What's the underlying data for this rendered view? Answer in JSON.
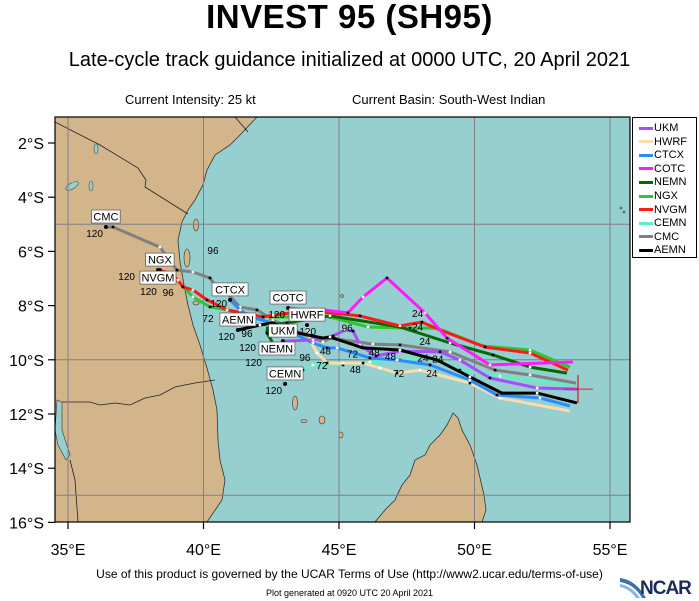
{
  "header": {
    "title": "INVEST 95 (SH95)",
    "subtitle": "Late-cycle track guidance initialized at 0000 UTC, 20 April 2021",
    "intensity": "Current Intensity: 25 kt",
    "basin": "Current Basin: South-West Indian"
  },
  "footer": {
    "terms": "Use of this product is governed by the UCAR Terms of Use (http://www2.ucar.edu/terms-of-use)",
    "generated": "Plot generated at 0920 UTC   20 April 2021",
    "logo": "NCAR"
  },
  "colors": {
    "ocean": "#96cfcf",
    "land": "#d3b58c",
    "grid": "#808080"
  },
  "chart_data": {
    "type": "line",
    "map_extent": {
      "lon": [
        34.5,
        55.7
      ],
      "lat_south": [
        1.0,
        16.0
      ]
    },
    "x_ticks": [
      "35°E",
      "40°E",
      "45°E",
      "50°E",
      "55°E"
    ],
    "x_tick_values": [
      35,
      40,
      45,
      50,
      55
    ],
    "y_ticks": [
      "2°S",
      "4°S",
      "6°S",
      "8°S",
      "10°S",
      "12°S",
      "14°S",
      "16°S"
    ],
    "y_tick_values": [
      2,
      4,
      6,
      8,
      10,
      12,
      14,
      16
    ],
    "grid_interval_deg": 5,
    "legend_placement": "right",
    "initial_position": {
      "lon": 53.82,
      "lat_south": 11.08
    },
    "tracks": [
      {
        "name": "UKM",
        "color": "#a64dff",
        "points": [
          [
            53.82,
            11.08
          ],
          [
            52.31,
            11.04
          ],
          [
            50.57,
            10.67
          ],
          [
            49.46,
            10.01
          ],
          [
            48.73,
            9.71
          ],
          [
            47.25,
            9.68
          ],
          [
            46.37,
            9.86
          ],
          [
            45.77,
            9.45
          ],
          [
            45.52,
            8.94
          ],
          [
            45.22,
            8.9
          ],
          [
            44.78,
            9.12
          ],
          [
            44.04,
            9.27
          ],
          [
            42.93,
            9.31
          ]
        ]
      },
      {
        "name": "HWRF",
        "color": "#f7dcae",
        "points": [
          [
            53.52,
            11.89
          ],
          [
            50.94,
            11.41
          ],
          [
            49.83,
            10.86
          ],
          [
            47.99,
            10.38
          ],
          [
            47.14,
            10.49
          ],
          [
            46.51,
            10.3
          ],
          [
            45.89,
            10.12
          ],
          [
            45.15,
            10.12
          ],
          [
            44.56,
            10.12
          ],
          [
            44.19,
            9.75
          ],
          [
            43.93,
            9.27
          ],
          [
            43.82,
            8.72
          ]
        ]
      },
      {
        "name": "CTCX",
        "color": "#2b8cff",
        "points": [
          [
            53.52,
            11.7
          ],
          [
            52.42,
            11.41
          ],
          [
            50.83,
            11.3
          ],
          [
            49.83,
            10.75
          ],
          [
            48.36,
            10.19
          ],
          [
            47.14,
            10.01
          ],
          [
            46.14,
            9.93
          ],
          [
            44.93,
            9.56
          ],
          [
            44.56,
            9.56
          ],
          [
            44.04,
            9.38
          ],
          [
            43.3,
            9.01
          ],
          [
            42.56,
            8.64
          ],
          [
            41.72,
            8.42
          ],
          [
            41.35,
            8.16
          ],
          [
            40.98,
            7.79
          ]
        ]
      },
      {
        "name": "COTC",
        "color": "#ff1aff",
        "points": [
          [
            53.63,
            10.08
          ],
          [
            50.57,
            10.19
          ],
          [
            48.99,
            9.2
          ],
          [
            48.17,
            8.27
          ],
          [
            46.77,
            6.98
          ],
          [
            45.89,
            7.68
          ],
          [
            45.33,
            8.27
          ],
          [
            44.41,
            8.16
          ],
          [
            43.82,
            8.16
          ],
          [
            43.12,
            8.09
          ]
        ]
      },
      {
        "name": "NEMN",
        "color": "#006a00",
        "points": [
          [
            53.41,
            10.49
          ],
          [
            52.05,
            10.27
          ],
          [
            50.68,
            9.82
          ],
          [
            49.1,
            9.38
          ],
          [
            47.25,
            8.79
          ],
          [
            44.67,
            8.38
          ],
          [
            43.08,
            8.64
          ],
          [
            42.38,
            8.72
          ],
          [
            42.34,
            9.01
          ],
          [
            42.56,
            9.38
          ],
          [
            42.71,
            9.75
          ]
        ]
      },
      {
        "name": "NGX",
        "color": "#33c233",
        "points": [
          [
            53.52,
            10.27
          ],
          [
            52.05,
            9.64
          ],
          [
            50.31,
            9.49
          ],
          [
            48.62,
            8.83
          ],
          [
            47.62,
            8.83
          ],
          [
            46.07,
            8.79
          ],
          [
            44.67,
            8.42
          ],
          [
            44.3,
            8.35
          ],
          [
            43.3,
            8.42
          ],
          [
            42.34,
            8.42
          ],
          [
            41.61,
            8.35
          ],
          [
            40.87,
            8.16
          ],
          [
            40.24,
            8.05
          ],
          [
            39.61,
            7.68
          ],
          [
            39.02,
            7.06
          ],
          [
            38.39,
            6.69
          ]
        ]
      },
      {
        "name": "NVGM",
        "color": "#ff1a1a",
        "points": [
          [
            53.45,
            10.38
          ],
          [
            52.05,
            9.75
          ],
          [
            50.39,
            9.53
          ],
          [
            48.73,
            8.9
          ],
          [
            48.06,
            8.61
          ],
          [
            47.25,
            8.75
          ],
          [
            45.77,
            8.38
          ],
          [
            44.41,
            8.24
          ],
          [
            43.82,
            8.2
          ],
          [
            42.56,
            8.35
          ],
          [
            42.2,
            8.42
          ],
          [
            40.87,
            8.16
          ],
          [
            40.13,
            7.79
          ],
          [
            39.61,
            7.42
          ],
          [
            39.24,
            7.31
          ],
          [
            39.06,
            7.06
          ],
          [
            38.76,
            6.8
          ],
          [
            38.32,
            6.69
          ]
        ]
      },
      {
        "name": "CEMN",
        "color": "#66ecc4",
        "points": [
          [
            53.63,
            10.93
          ],
          [
            50.94,
            10.6
          ],
          [
            49.46,
            10.38
          ],
          [
            48.25,
            9.93
          ],
          [
            47.25,
            10.01
          ],
          [
            46.14,
            10.08
          ],
          [
            45.15,
            10.19
          ],
          [
            44.04,
            10.19
          ],
          [
            43.67,
            10.38
          ],
          [
            43.3,
            10.49
          ],
          [
            43.01,
            10.89
          ]
        ]
      },
      {
        "name": "CMC",
        "color": "#808080",
        "points": [
          [
            53.75,
            10.86
          ],
          [
            52.05,
            10.56
          ],
          [
            50.76,
            10.38
          ],
          [
            49.1,
            9.71
          ],
          [
            47.25,
            9.45
          ],
          [
            46.25,
            9.42
          ],
          [
            44.67,
            9.2
          ],
          [
            44.41,
            9.34
          ],
          [
            43.45,
            8.97
          ],
          [
            42.56,
            8.53
          ],
          [
            41.97,
            8.16
          ],
          [
            41.35,
            8.05
          ],
          [
            40.87,
            7.54
          ],
          [
            40.5,
            7.35
          ],
          [
            40.24,
            6.98
          ],
          [
            39.61,
            6.76
          ],
          [
            39.02,
            6.69
          ],
          [
            38.39,
            5.84
          ],
          [
            36.66,
            5.1
          ],
          [
            36.4,
            5.1
          ]
        ]
      },
      {
        "name": "AEMN",
        "color": "#000000",
        "points": [
          [
            53.78,
            11.59
          ],
          [
            52.31,
            11.23
          ],
          [
            51.01,
            11.23
          ],
          [
            49.83,
            10.63
          ],
          [
            48.62,
            10.01
          ],
          [
            47.25,
            9.64
          ],
          [
            45.89,
            9.56
          ],
          [
            44.67,
            9.16
          ],
          [
            44.41,
            9.2
          ],
          [
            43.3,
            8.97
          ],
          [
            42.56,
            8.64
          ],
          [
            42.08,
            8.72
          ],
          [
            41.27,
            8.9
          ]
        ]
      }
    ],
    "end_hour_label": "120",
    "hour_labels": [
      {
        "text": "96",
        "lon": 40.35,
        "lat_south": 6.13
      },
      {
        "text": "96",
        "lon": 38.4,
        "lat_south": 7.57
      },
      {
        "text": "72",
        "lon": 40.46,
        "lat_south": 8.42
      },
      {
        "text": "96",
        "lon": 41.9,
        "lat_south": 9.2
      },
      {
        "text": "96",
        "lon": 43.3,
        "lat_south": 10.3
      },
      {
        "text": "72",
        "lon": 44.37,
        "lat_south": 10.38
      },
      {
        "text": "48",
        "lon": 44.5,
        "lat_south": 9.85
      },
      {
        "text": "96",
        "lon": 45.3,
        "lat_south": 9.0
      },
      {
        "text": "72",
        "lon": 45.5,
        "lat_south": 9.95
      },
      {
        "text": "48",
        "lon": 45.6,
        "lat_south": 10.2
      },
      {
        "text": "48",
        "lon": 46.3,
        "lat_south": 9.9
      },
      {
        "text": "48",
        "lon": 46.9,
        "lat_south": 10.05
      },
      {
        "text": "72",
        "lon": 47.2,
        "lat_south": 10.67
      },
      {
        "text": "24",
        "lon": 47.9,
        "lat_south": 8.46
      },
      {
        "text": "24",
        "lon": 47.9,
        "lat_south": 8.85
      },
      {
        "text": "24",
        "lon": 48.17,
        "lat_south": 9.27
      },
      {
        "text": "24",
        "lon": 48.1,
        "lat_south": 10.1
      },
      {
        "text": "24",
        "lon": 48.43,
        "lat_south": 10.67
      },
      {
        "text": "24",
        "lon": 48.5,
        "lat_south": 10.35
      }
    ]
  }
}
